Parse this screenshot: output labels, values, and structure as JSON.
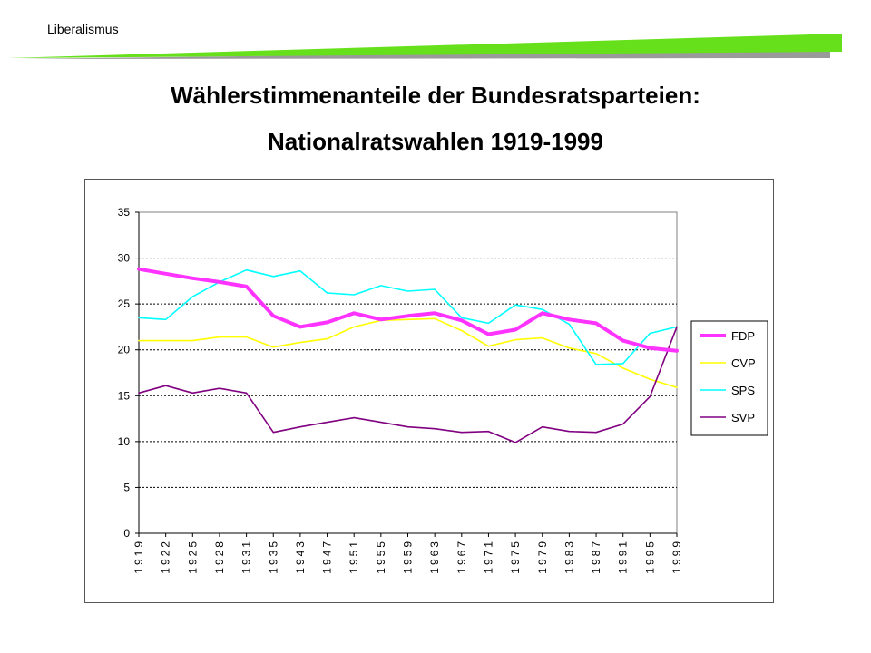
{
  "header": {
    "label": "Liberalismus"
  },
  "title": {
    "line1": "Wählerstimmenanteile der Bundesratsparteien:",
    "line2": "Nationalratswahlen 1919-1999"
  },
  "colors": {
    "swoosh_green": "#66e01a",
    "swoosh_gray": "#9a9a9a"
  },
  "chart_data": {
    "type": "line",
    "categories": [
      "1919",
      "1922",
      "1925",
      "1928",
      "1931",
      "1935",
      "1943",
      "1947",
      "1951",
      "1955",
      "1959",
      "1963",
      "1967",
      "1971",
      "1975",
      "1979",
      "1983",
      "1987",
      "1991",
      "1995",
      "1999"
    ],
    "ylim": [
      0,
      35
    ],
    "yticks": [
      0,
      5,
      10,
      15,
      20,
      25,
      30,
      35
    ],
    "grid": true,
    "legend_position": "right",
    "series": [
      {
        "name": "FDP",
        "color": "#ff33ff",
        "width": 4,
        "values": [
          28.8,
          28.3,
          27.8,
          27.4,
          26.9,
          23.7,
          22.5,
          23.0,
          24.0,
          23.3,
          23.7,
          24.0,
          23.2,
          21.7,
          22.2,
          24.0,
          23.3,
          22.9,
          21.0,
          20.2,
          19.9
        ]
      },
      {
        "name": "CVP",
        "color": "#ffff00",
        "width": 1.6,
        "values": [
          21.0,
          21.0,
          21.0,
          21.4,
          21.4,
          20.3,
          20.8,
          21.2,
          22.5,
          23.2,
          23.3,
          23.4,
          22.1,
          20.4,
          21.1,
          21.3,
          20.2,
          19.6,
          18.0,
          16.8,
          15.9
        ]
      },
      {
        "name": "SPS",
        "color": "#00ffff",
        "width": 1.6,
        "values": [
          23.5,
          23.3,
          25.8,
          27.4,
          28.7,
          28.0,
          28.6,
          26.2,
          26.0,
          27.0,
          26.4,
          26.6,
          23.5,
          22.9,
          24.9,
          24.4,
          22.8,
          18.4,
          18.5,
          21.8,
          22.5
        ]
      },
      {
        "name": "SVP",
        "color": "#800080",
        "width": 1.6,
        "values": [
          15.3,
          16.1,
          15.3,
          15.8,
          15.3,
          11.0,
          11.6,
          12.1,
          12.6,
          12.1,
          11.6,
          11.4,
          11.0,
          11.1,
          9.9,
          11.6,
          11.1,
          11.0,
          11.9,
          14.9,
          22.5
        ]
      }
    ]
  }
}
